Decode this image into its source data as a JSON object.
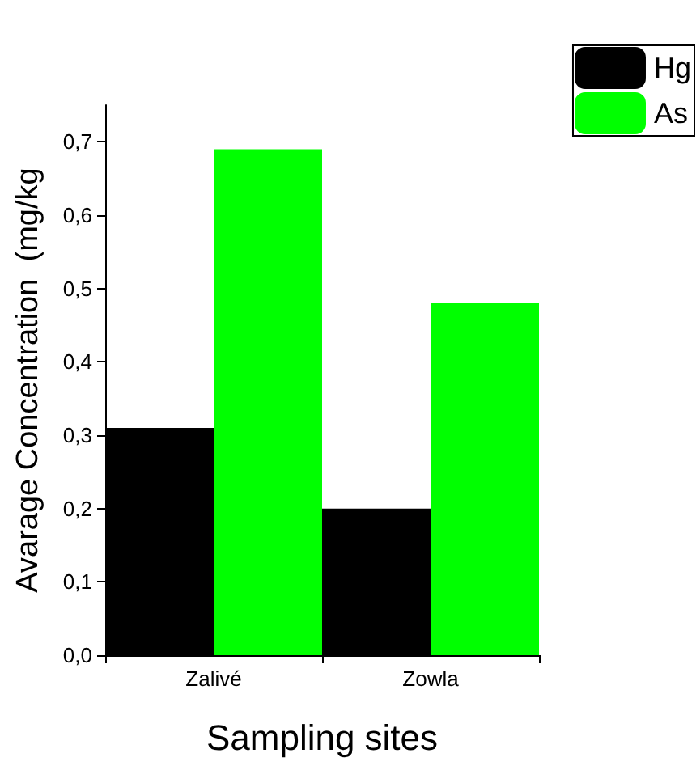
{
  "chart_data": {
    "type": "bar",
    "xlabel": "Sampling sites",
    "ylabel": "Avarage Concentration  (mg/kg",
    "categories": [
      "Zalivé",
      "Zowla"
    ],
    "series": [
      {
        "name": "Hg",
        "color": "#000000",
        "values": [
          0.31,
          0.2
        ]
      },
      {
        "name": "As",
        "color": "#00ff00",
        "values": [
          0.69,
          0.48
        ]
      }
    ],
    "ylim": [
      0,
      0.75
    ],
    "yticks": [
      {
        "value": 0,
        "label": "0,0"
      },
      {
        "value": 0.1,
        "label": "0,1"
      },
      {
        "value": 0.2,
        "label": "0,2"
      },
      {
        "value": 0.3,
        "label": "0,3"
      },
      {
        "value": 0.4,
        "label": "0,4"
      },
      {
        "value": 0.5,
        "label": "0,5"
      },
      {
        "value": 0.6,
        "label": "0,6"
      },
      {
        "value": 0.7,
        "label": "0,7"
      }
    ],
    "grid": false,
    "legend": "top right"
  }
}
